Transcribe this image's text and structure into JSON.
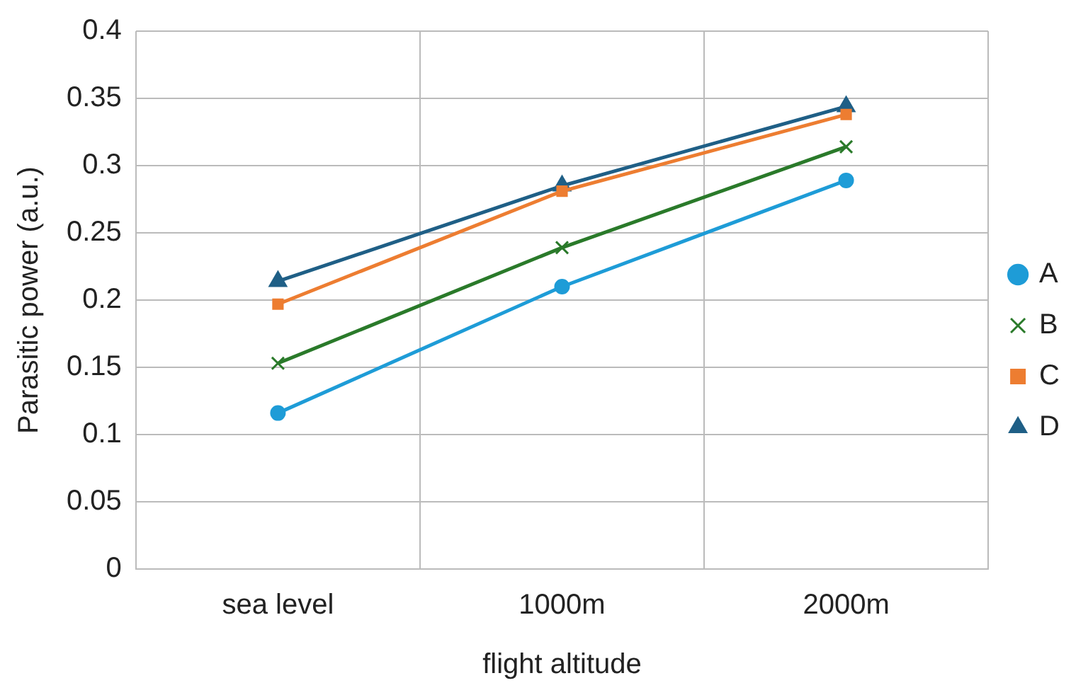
{
  "chart_data": {
    "type": "line",
    "xlabel": "flight altitude",
    "ylabel": "Parasitic power (a.u.)",
    "categories": [
      "sea level",
      "1000m",
      "2000m"
    ],
    "series": [
      {
        "name": "A",
        "color": "#1e9cd7",
        "marker": "circle",
        "values": [
          0.116,
          0.21,
          0.289
        ]
      },
      {
        "name": "B",
        "color": "#2a7a2a",
        "marker": "cross",
        "values": [
          0.153,
          0.239,
          0.314
        ]
      },
      {
        "name": "C",
        "color": "#ed7d31",
        "marker": "square",
        "values": [
          0.197,
          0.281,
          0.338
        ]
      },
      {
        "name": "D",
        "color": "#1f5f86",
        "marker": "triangle",
        "values": [
          0.214,
          0.285,
          0.344
        ]
      }
    ],
    "ylim": [
      0,
      0.4
    ],
    "yticks": [
      0,
      0.05,
      0.1,
      0.15,
      0.2,
      0.25,
      0.3,
      0.35,
      0.4
    ],
    "grid": true,
    "legend": "right",
    "line_style": "solid"
  }
}
